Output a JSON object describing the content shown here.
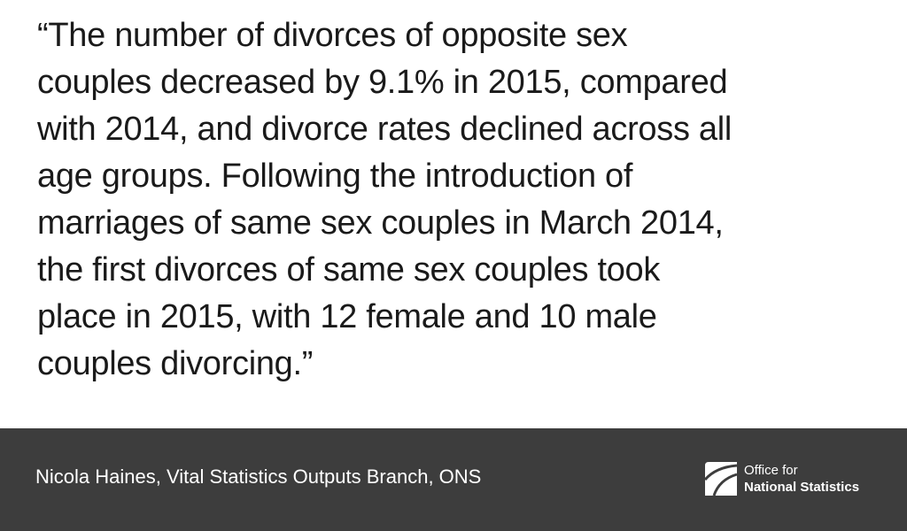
{
  "quote": {
    "lines": [
      "“The number of divorces of opposite sex",
      "couples decreased by 9.1% in 2015, compared",
      "with 2014, and divorce rates declined across all",
      "age groups. Following the introduction of",
      "marriages of same sex couples in March 2014,",
      "the first divorces of same sex couples took",
      "place in 2015, with 12 female and 10 male",
      "couples divorcing.”"
    ]
  },
  "footer": {
    "attribution": "Nicola Haines, Vital Statistics Outputs Branch, ONS",
    "logo": {
      "line1": "Office for",
      "line2": "National Statistics"
    }
  }
}
